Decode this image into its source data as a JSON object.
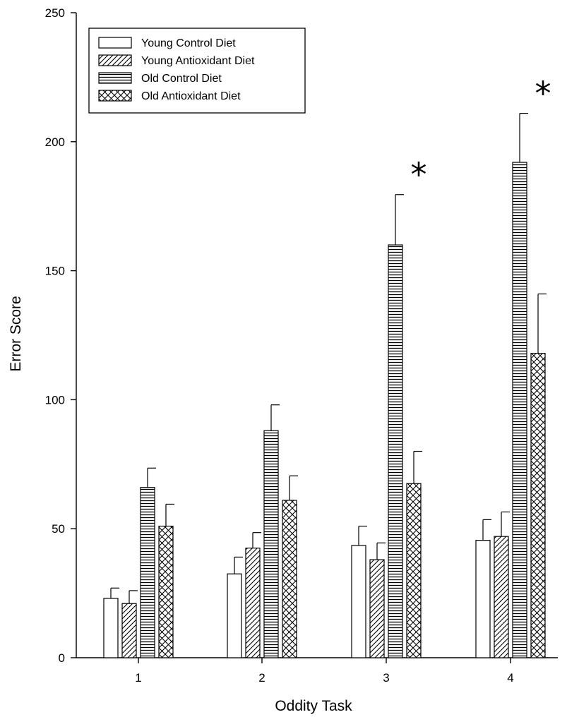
{
  "chart_data": {
    "type": "bar",
    "title": "",
    "xlabel": "Oddity Task",
    "ylabel": "Error Score",
    "ylim": [
      0,
      250
    ],
    "yticks": [
      "0",
      "50",
      "100",
      "150",
      "200",
      "250"
    ],
    "categories": [
      "1",
      "2",
      "3",
      "4"
    ],
    "grid": false,
    "legend_position": "top-left",
    "series": [
      {
        "name": "Young Control Diet",
        "pattern": "none",
        "values": [
          23,
          32.5,
          43.5,
          45.5
        ],
        "errors": [
          4,
          6.5,
          7.5,
          8
        ]
      },
      {
        "name": "Young Antioxidant Diet",
        "pattern": "diagonal",
        "values": [
          21,
          42.5,
          38,
          47
        ],
        "errors": [
          5,
          6,
          6.5,
          9.5
        ]
      },
      {
        "name": "Old Control Diet",
        "pattern": "horizontal",
        "values": [
          66,
          88,
          160,
          192
        ],
        "errors": [
          7.5,
          10,
          19.5,
          19
        ]
      },
      {
        "name": "Old Antioxidant Diet",
        "pattern": "crosshatch",
        "values": [
          51,
          61,
          67.5,
          118
        ],
        "errors": [
          8.5,
          9.5,
          12.5,
          23
        ]
      }
    ],
    "annotations": [
      {
        "text": "*",
        "category": "3"
      },
      {
        "text": "*",
        "category": "4"
      }
    ]
  }
}
